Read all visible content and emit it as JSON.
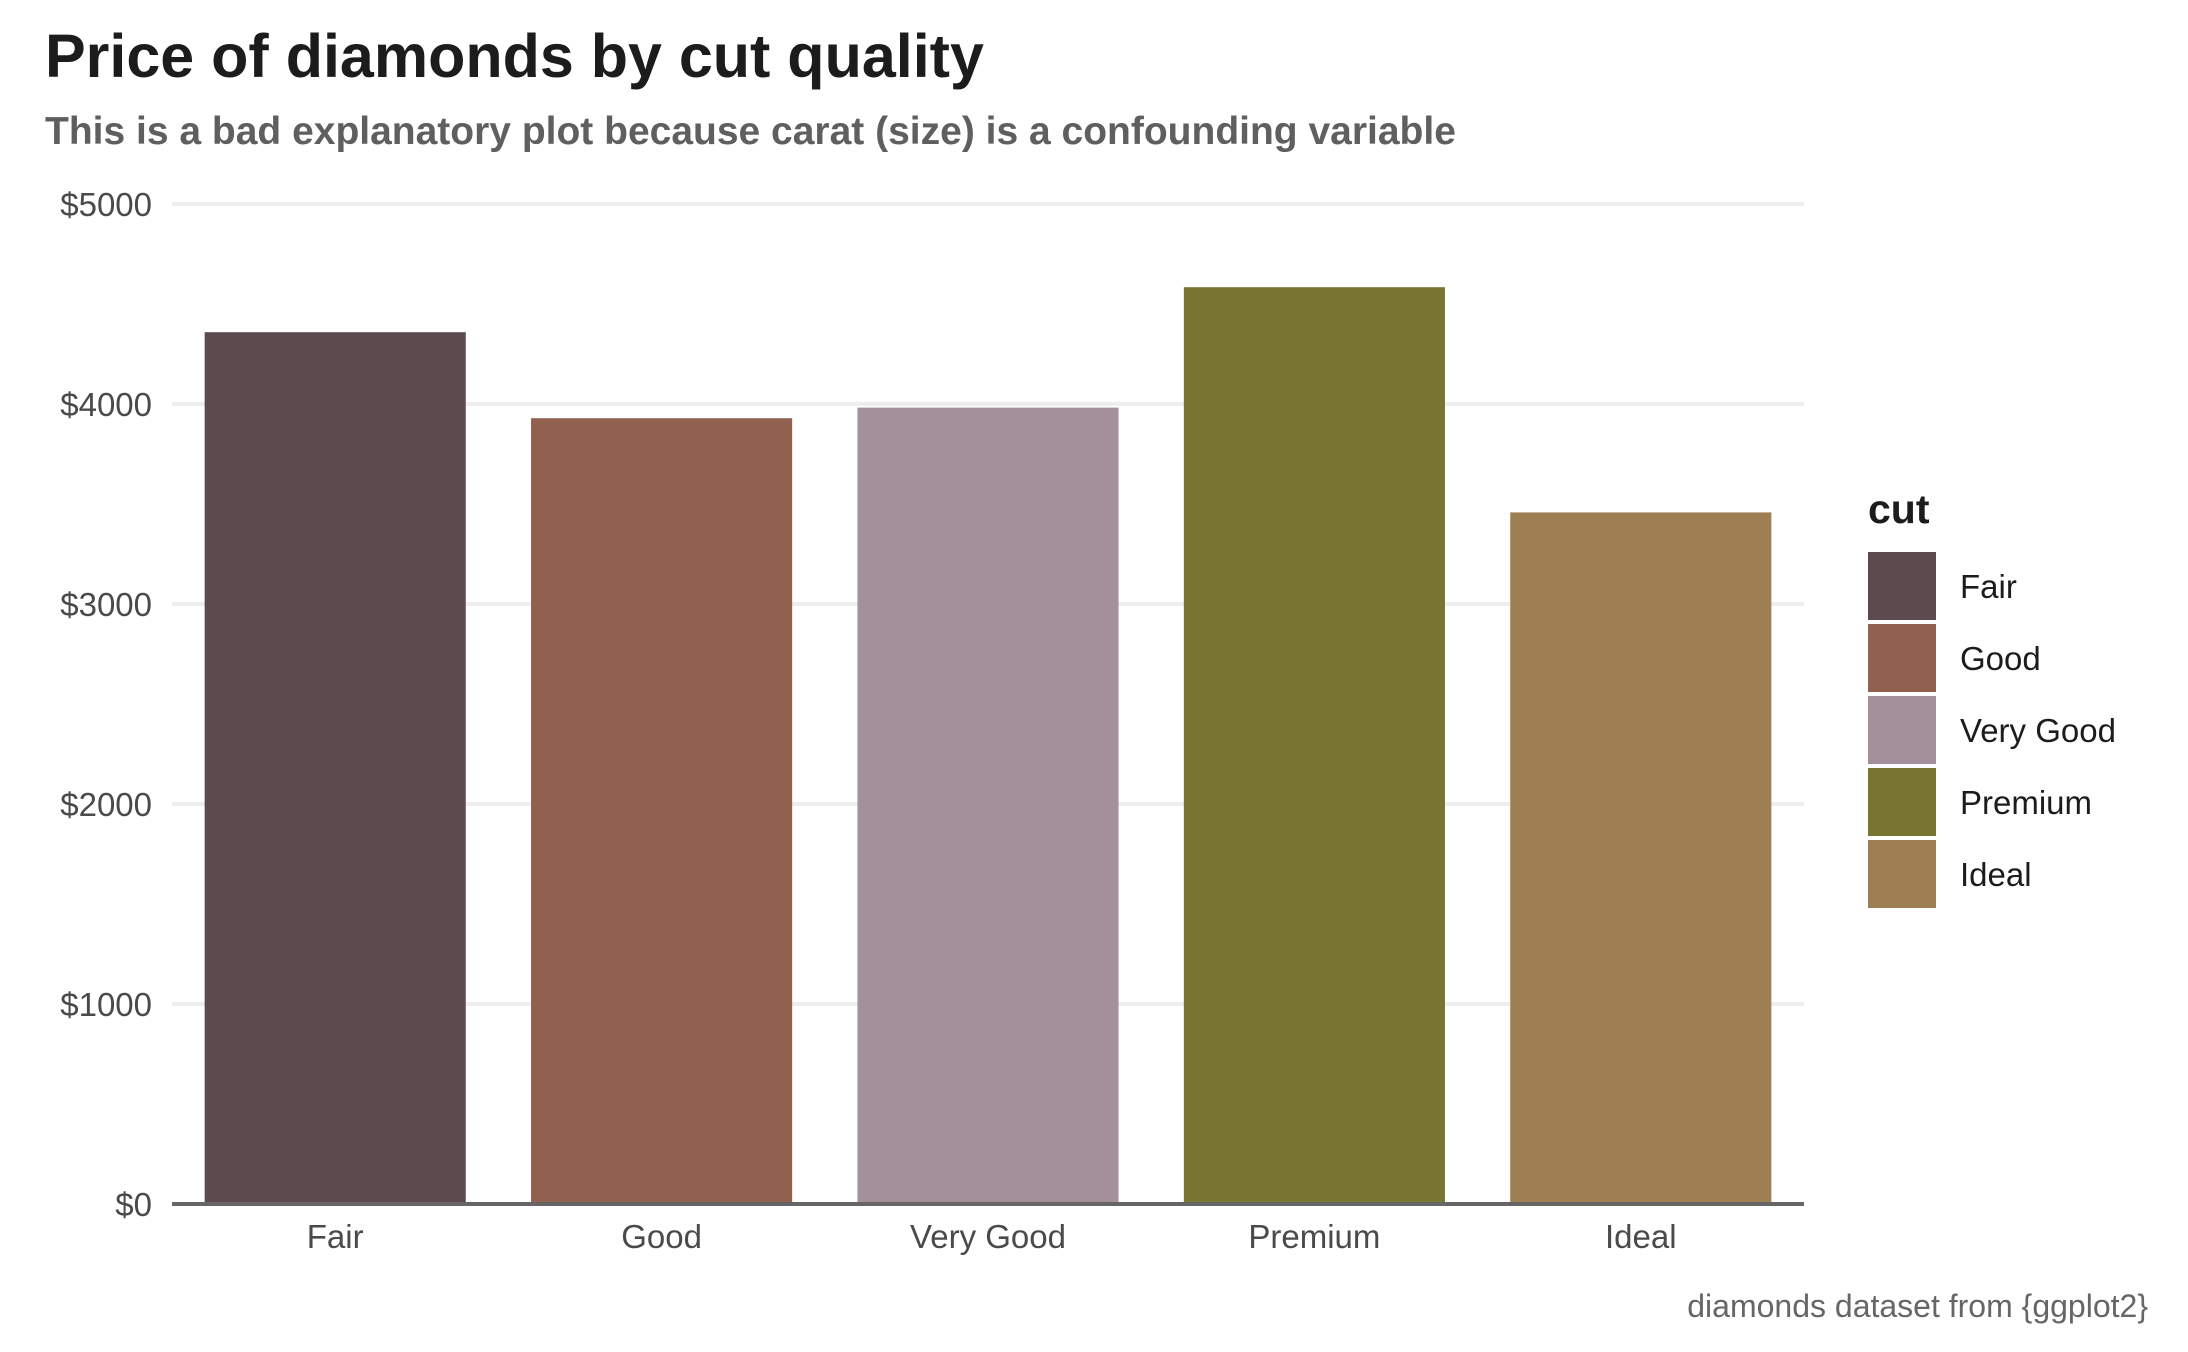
{
  "chart_data": {
    "type": "bar",
    "title": "Price of diamonds by cut quality",
    "subtitle": "This is a bad explanatory plot because carat (size) is a confounding variable",
    "caption": "diamonds dataset from {ggplot2}",
    "xlabel": "",
    "ylabel": "",
    "categories": [
      "Fair",
      "Good",
      "Very Good",
      "Premium",
      "Ideal"
    ],
    "values": [
      4359,
      3929,
      3982,
      4584,
      3458
    ],
    "colors": [
      "#5d4a4f",
      "#91604f",
      "#a3909a",
      "#777530",
      "#9e7e53"
    ],
    "ylim": [
      0,
      5000
    ],
    "y_ticks": [
      0,
      1000,
      2000,
      3000,
      4000,
      5000
    ],
    "y_tick_labels": [
      "$0",
      "$1000",
      "$2000",
      "$3000",
      "$4000",
      "$5000"
    ],
    "grid": "horizontal major gridlines",
    "legend": {
      "title": "cut",
      "placement": "right",
      "entries": [
        "Fair",
        "Good",
        "Very Good",
        "Premium",
        "Ideal"
      ]
    }
  }
}
